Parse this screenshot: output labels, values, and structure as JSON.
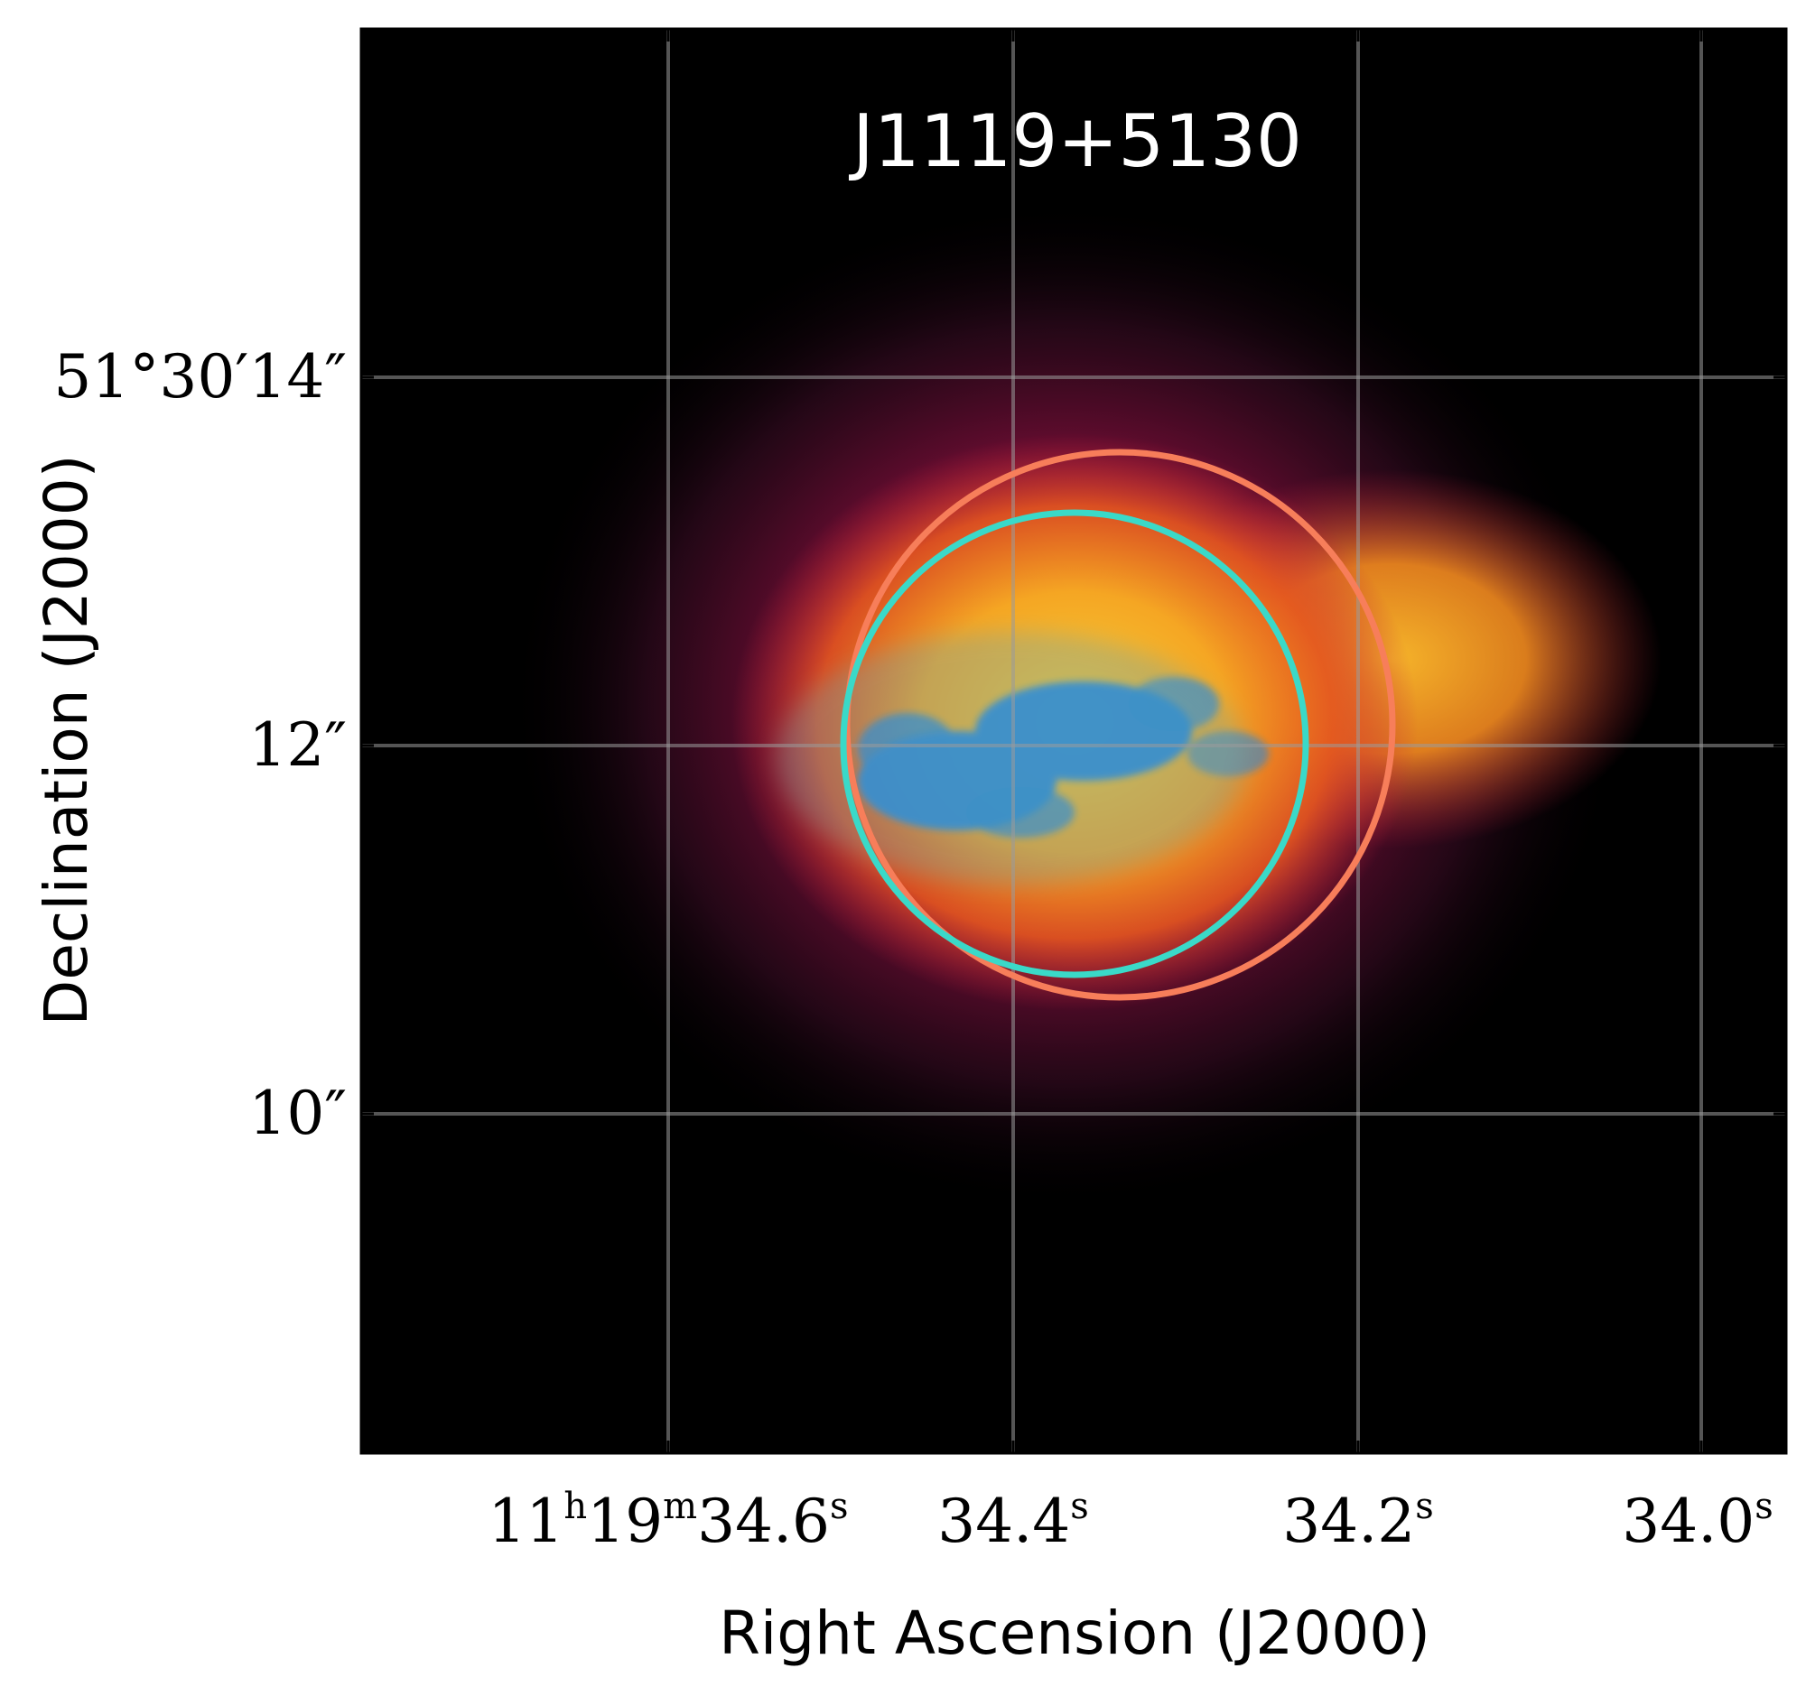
{
  "figure": {
    "title": "J1119+5130",
    "xlabel": "Right Ascension (J2000)",
    "ylabel": "Declination (J2000)",
    "x_ticks": [
      {
        "parts": [
          [
            "11",
            "h"
          ],
          [
            "19",
            "m"
          ],
          [
            "34.6",
            "s"
          ]
        ]
      },
      {
        "parts": [
          [
            "34.4",
            "s"
          ]
        ]
      },
      {
        "parts": [
          [
            "34.2",
            "s"
          ]
        ]
      },
      {
        "parts": [
          [
            "34.0",
            "s"
          ]
        ]
      }
    ],
    "y_ticks": [
      {
        "label": "51°30′14″"
      },
      {
        "label": "12″"
      },
      {
        "label": "10″"
      }
    ],
    "colors": {
      "background": "#000000",
      "glow_core": "#f5d03a",
      "glow_mid": "#f08a1e",
      "glow_outer": "#b0123f",
      "clumps": "#1a86e2",
      "circle_cyan": "#3ad9c8",
      "circle_orange": "#f77e5a",
      "grid": "#9a9a9a"
    }
  }
}
